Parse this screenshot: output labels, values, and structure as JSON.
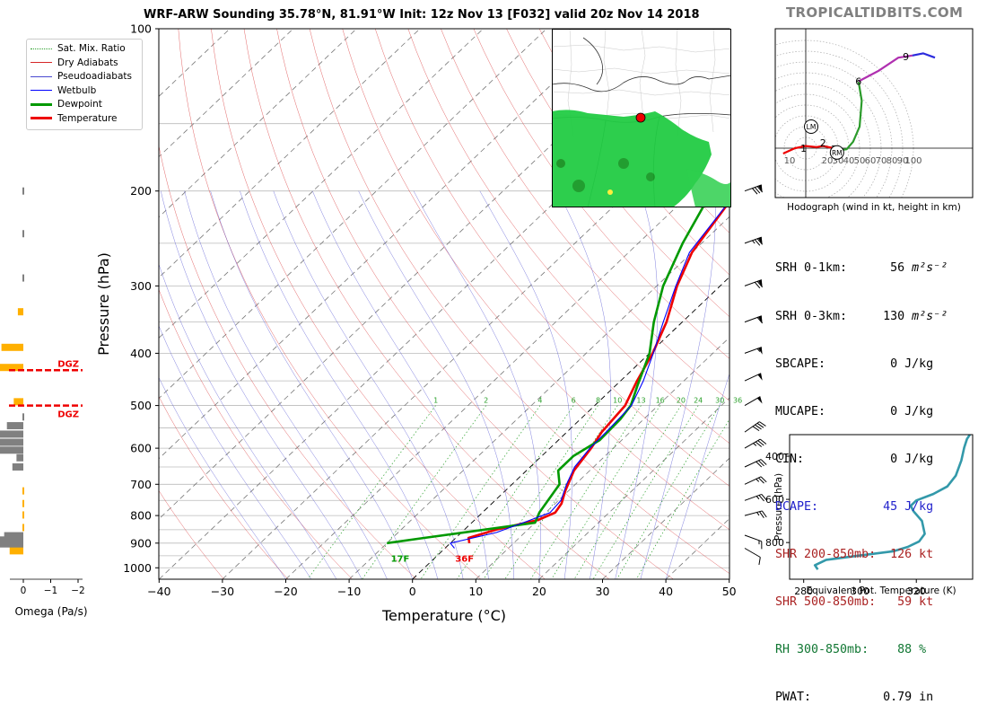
{
  "header": {
    "title": "WRF-ARW Sounding 35.78°N, 81.91°W Init: 12z Nov 13 [F032] valid 20z Nov 14 2018",
    "brand": "TROPICALTIDBITS.COM"
  },
  "legend": [
    {
      "label": "Sat. Mix. Ratio",
      "color": "#2ca02c",
      "style": "dotted",
      "width": 1
    },
    {
      "label": "Dry Adiabats",
      "color": "#d62728",
      "style": "solid",
      "width": 0.6
    },
    {
      "label": "Pseudoadiabats",
      "color": "#4a4ad0",
      "style": "solid",
      "width": 0.6
    },
    {
      "label": "Wetbulb",
      "color": "#0000ff",
      "style": "solid",
      "width": 1.2
    },
    {
      "label": "Dewpoint",
      "color": "#009900",
      "style": "solid",
      "width": 3
    },
    {
      "label": "Temperature",
      "color": "#ee0000",
      "style": "solid",
      "width": 3
    }
  ],
  "chart_data": [
    {
      "type": "line",
      "subtype": "skew-T log-P",
      "xlabel": "Temperature (°C)",
      "ylabel": "Pressure (hPa)",
      "xlim": [
        -40,
        50
      ],
      "ylim": [
        1050,
        100
      ],
      "x_ticks": [
        -40,
        -30,
        -20,
        -10,
        0,
        10,
        20,
        30,
        40,
        50
      ],
      "x_tick_labels": [
        "−40",
        "−30",
        "−20",
        "−10",
        "0",
        "10",
        "20",
        "30",
        "40",
        "50"
      ],
      "y_ticks": [
        100,
        200,
        300,
        400,
        500,
        600,
        700,
        800,
        900,
        1000
      ],
      "y_tick_labels": [
        "100",
        "200",
        "300",
        "400",
        "500",
        "600",
        "700",
        "800",
        "900",
        "1000"
      ],
      "mixing_ratio_labels": [
        "1",
        "2",
        "4",
        "6",
        "8",
        "10",
        "13",
        "16",
        "20",
        "24",
        "30",
        "36"
      ],
      "mixing_ratio_values": [
        1,
        2,
        4,
        6,
        8,
        10,
        13,
        16,
        20,
        24,
        30,
        36
      ],
      "series": [
        {
          "name": "Temperature",
          "color": "#ee0000",
          "points": [
            [
              3,
              900
            ],
            [
              2,
              880
            ],
            [
              5,
              850
            ],
            [
              10,
              815
            ],
            [
              11.5,
              790
            ],
            [
              11,
              760
            ],
            [
              9.5,
              720
            ],
            [
              7.5,
              660
            ],
            [
              6.5,
              600
            ],
            [
              5.5,
              560
            ],
            [
              4.8,
              500
            ],
            [
              2.6,
              450
            ],
            [
              0.5,
              400
            ],
            [
              -2.5,
              350
            ],
            [
              -6.8,
              300
            ],
            [
              -10,
              260
            ],
            [
              -13,
              200
            ]
          ]
        },
        {
          "name": "Dewpoint",
          "color": "#009900",
          "points": [
            [
              -10,
              900
            ],
            [
              -5,
              880
            ],
            [
              10,
              825
            ],
            [
              9,
              790
            ],
            [
              7.5,
              700
            ],
            [
              5,
              660
            ],
            [
              5,
              620
            ],
            [
              6.5,
              580
            ],
            [
              6.3,
              530
            ],
            [
              5.7,
              500
            ],
            [
              3.5,
              460
            ],
            [
              0,
              400
            ],
            [
              -4.5,
              350
            ],
            [
              -9,
              300
            ],
            [
              -13,
              250
            ],
            [
              -17,
              200
            ]
          ]
        },
        {
          "name": "Wetbulb",
          "color": "#0000ff",
          "points": [
            [
              1.5,
              920
            ],
            [
              0,
              900
            ],
            [
              5.5,
              860
            ],
            [
              8.5,
              820
            ],
            [
              10.7,
              790
            ],
            [
              10.4,
              750
            ],
            [
              8.6,
              700
            ],
            [
              7,
              650
            ],
            [
              6.3,
              600
            ],
            [
              6.2,
              560
            ],
            [
              5.8,
              500
            ],
            [
              3.6,
              450
            ],
            [
              0.6,
              400
            ],
            [
              -3,
              350
            ],
            [
              -7,
              300
            ],
            [
              -10.4,
              260
            ],
            [
              -13,
              200
            ]
          ]
        }
      ],
      "annotations": [
        {
          "text": "17F",
          "color": "#009900"
        },
        {
          "text": "36F",
          "color": "#ee0000"
        }
      ],
      "wind_barbs": [
        {
          "p": 920,
          "spd": 10,
          "dir": 300
        },
        {
          "p": 870,
          "spd": 15,
          "dir": 290
        },
        {
          "p": 800,
          "spd": 25,
          "dir": 255
        },
        {
          "p": 750,
          "spd": 25,
          "dir": 250
        },
        {
          "p": 700,
          "spd": 25,
          "dir": 245
        },
        {
          "p": 650,
          "spd": 30,
          "dir": 245
        },
        {
          "p": 600,
          "spd": 35,
          "dir": 240
        },
        {
          "p": 560,
          "spd": 40,
          "dir": 235
        },
        {
          "p": 500,
          "spd": 50,
          "dir": 240
        },
        {
          "p": 450,
          "spd": 50,
          "dir": 245
        },
        {
          "p": 400,
          "spd": 55,
          "dir": 250
        },
        {
          "p": 350,
          "spd": 60,
          "dir": 250
        },
        {
          "p": 300,
          "spd": 70,
          "dir": 250
        },
        {
          "p": 250,
          "spd": 75,
          "dir": 250
        },
        {
          "p": 200,
          "spd": 80,
          "dir": 250
        }
      ]
    },
    {
      "type": "bar",
      "subtype": "horizontal omega profile",
      "xlabel": "Omega (Pa/s)",
      "xlim": [
        0.2,
        -2
      ],
      "x_ticks": [
        0,
        -1,
        -2
      ],
      "x_tick_labels": [
        "0",
        "−1",
        "−2"
      ],
      "bars": [
        {
          "p": 930,
          "v": 0.5,
          "c": "#ffb000"
        },
        {
          "p": 903,
          "v": 1.0,
          "c": "#808080"
        },
        {
          "p": 888,
          "v": 1.1,
          "c": "#808080"
        },
        {
          "p": 872,
          "v": 0.7,
          "c": "#808080"
        },
        {
          "p": 842,
          "v": 0.05,
          "c": "#ffb000"
        },
        {
          "p": 798,
          "v": 0.05,
          "c": "#ffb000"
        },
        {
          "p": 760,
          "v": 0.05,
          "c": "#ffb000"
        },
        {
          "p": 720,
          "v": 0.05,
          "c": "#ffb000"
        },
        {
          "p": 650,
          "v": 0.4,
          "c": "#808080"
        },
        {
          "p": 625,
          "v": 0.25,
          "c": "#808080"
        },
        {
          "p": 605,
          "v": 0.9,
          "c": "#808080"
        },
        {
          "p": 585,
          "v": 0.9,
          "c": "#808080"
        },
        {
          "p": 565,
          "v": 0.9,
          "c": "#808080"
        },
        {
          "p": 545,
          "v": 0.6,
          "c": "#808080"
        },
        {
          "p": 525,
          "v": 0.05,
          "c": "#808080"
        },
        {
          "p": 492,
          "v": 0.35,
          "c": "#ffb000"
        },
        {
          "p": 425,
          "v": 1.0,
          "c": "#ffb000"
        },
        {
          "p": 390,
          "v": 0.8,
          "c": "#ffb000"
        },
        {
          "p": 335,
          "v": 0.2,
          "c": "#ffb000"
        },
        {
          "p": 290,
          "v": 0.05,
          "c": "#808080"
        },
        {
          "p": 240,
          "v": 0.05,
          "c": "#808080"
        },
        {
          "p": 200,
          "v": 0.05,
          "c": "#808080"
        }
      ],
      "dgz": [
        {
          "p": 430,
          "label": "DGZ"
        },
        {
          "p": 500,
          "label": "DGZ"
        }
      ]
    },
    {
      "type": "line",
      "subtype": "hodograph",
      "title": "Hodograph (wind in kt, height in km)",
      "ring_labels": [
        "10",
        "20",
        "30",
        "40",
        "50",
        "60",
        "70",
        "80",
        "90",
        "100"
      ],
      "ring_values": [
        10,
        20,
        30,
        40,
        50,
        60,
        70,
        80,
        90,
        100
      ],
      "segments": [
        {
          "color": "#ee0000",
          "points": [
            [
              -21,
              -5
            ],
            [
              -10,
              0
            ],
            [
              0,
              2
            ],
            [
              10,
              1
            ],
            [
              16,
              2
            ],
            [
              26,
              0
            ],
            [
              31,
              -2
            ]
          ]
        },
        {
          "color": "#2b9b2b",
          "points": [
            [
              31,
              -2
            ],
            [
              38,
              -1
            ],
            [
              44,
              6
            ],
            [
              50,
              20
            ],
            [
              52,
              44
            ],
            [
              49,
              62
            ]
          ]
        },
        {
          "color": "#b030b0",
          "points": [
            [
              49,
              62
            ],
            [
              68,
              72
            ],
            [
              86,
              84
            ],
            [
              99,
              86
            ]
          ]
        },
        {
          "color": "#2b2bdd",
          "points": [
            [
              99,
              86
            ],
            [
              109,
              88
            ],
            [
              120,
              84
            ]
          ]
        }
      ],
      "height_labels": [
        {
          "text": "1",
          "u": -2,
          "v": 0
        },
        {
          "text": "2",
          "u": 16,
          "v": 5
        },
        {
          "text": "3",
          "u": 26,
          "v": -1
        },
        {
          "text": "6",
          "u": 49,
          "v": 62
        },
        {
          "text": "9",
          "u": 93,
          "v": 85
        }
      ],
      "markers": [
        {
          "text": "LM",
          "u": 5,
          "v": 20
        },
        {
          "text": "RM",
          "u": 29,
          "v": -4
        }
      ]
    },
    {
      "type": "line",
      "subtype": "theta-e profile",
      "xlabel": "Equivalent Pot. Temperature (K)",
      "ylabel": "Pressure (hPa)",
      "xlim": [
        275,
        340
      ],
      "ylim": [
        970,
        300
      ],
      "x_ticks": [
        280,
        300,
        320
      ],
      "x_tick_labels": [
        "280",
        "300",
        "320"
      ],
      "y_ticks": [
        400,
        600,
        800
      ],
      "y_tick_labels": [
        "400",
        "600",
        "800"
      ],
      "color": "#3399aa",
      "points": [
        [
          285,
          925
        ],
        [
          284,
          905
        ],
        [
          288,
          880
        ],
        [
          300,
          860
        ],
        [
          312,
          840
        ],
        [
          317,
          820
        ],
        [
          321,
          795
        ],
        [
          323,
          760
        ],
        [
          322,
          700
        ],
        [
          319,
          655
        ],
        [
          318,
          630
        ],
        [
          320,
          605
        ],
        [
          326,
          575
        ],
        [
          331,
          540
        ],
        [
          334,
          490
        ],
        [
          336,
          420
        ],
        [
          337,
          360
        ],
        [
          338,
          320
        ],
        [
          339,
          300
        ]
      ]
    }
  ],
  "stats": {
    "srh01_label": "SRH 0-1km:",
    "srh01_value": "56",
    "srh_unit": "m²s⁻²",
    "srh03_label": "SRH 0-3km:",
    "srh03_value": "130",
    "sbcape_label": "SBCAPE:",
    "sbcape_value": "0 J/kg",
    "mucape_label": "MUCAPE:",
    "mucape_value": "0 J/kg",
    "cin_label": "CIN:",
    "cin_value": "0 J/kg",
    "dcape_label": "DCAPE:",
    "dcape_value": "45 J/kg",
    "shr1_label": "SHR 200-850mb:",
    "shr1_value": "126 kt",
    "shr2_label": "SHR 500-850mb:",
    "shr2_value": "59 kt",
    "rh_label": "RH 300-850mb:",
    "rh_value": "88 %",
    "pwat_label": "PWAT:",
    "pwat_value": "0.79 in",
    "colors": {
      "dcape": "#2222cc",
      "shr": "#aa2222",
      "rh": "#117733"
    }
  },
  "map": {
    "marker_color": "#ee0000",
    "precip_color": "#22cc44"
  }
}
